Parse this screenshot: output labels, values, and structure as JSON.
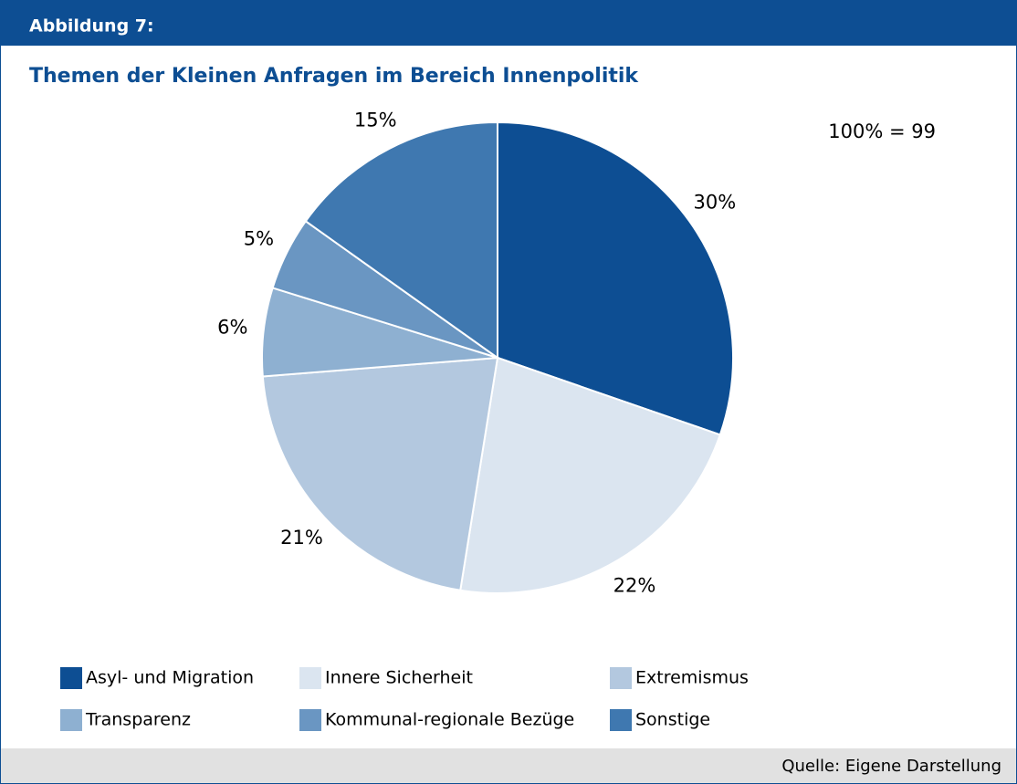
{
  "header": "Abbildung 7:",
  "chart_data": {
    "type": "pie",
    "title": "Themen der Kleinen Anfragen im Bereich Innenpolitik",
    "annotation": "100% = 99",
    "categories": [
      "Asyl- und Migration",
      "Innere Sicherheit",
      "Extremismus",
      "Transparenz",
      "Kommunal-regionale Bezüge",
      "Sonstige"
    ],
    "values": [
      30,
      22,
      21,
      6,
      5,
      15
    ],
    "value_labels": [
      "30%",
      "22%",
      "21%",
      "6%",
      "5%",
      "15%"
    ],
    "colors": [
      "#0d4e93",
      "#dbe5f0",
      "#b3c8df",
      "#8eb0d1",
      "#6a96c2",
      "#3f78b0"
    ]
  },
  "source": "Quelle: Eigene Darstellung"
}
